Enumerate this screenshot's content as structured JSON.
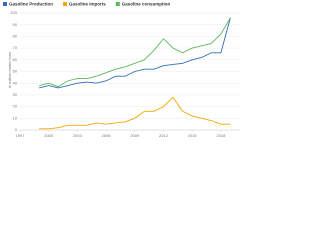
{
  "chart_data": {
    "type": "line",
    "y_label": "in million metric tons",
    "x": [
      1999,
      2000,
      2001,
      2002,
      2003,
      2004,
      2005,
      2006,
      2007,
      2008,
      2009,
      2010,
      2011,
      2012,
      2013,
      2014,
      2015,
      2016,
      2017,
      2018,
      2019
    ],
    "series": [
      {
        "name": "Gasoline Production",
        "color": "#2f6fb5",
        "values": [
          36,
          38,
          36,
          38,
          40,
          41,
          40,
          42,
          46,
          46,
          50,
          52,
          52,
          55,
          56,
          57,
          60,
          62,
          66,
          66,
          96
        ]
      },
      {
        "name": "Gasoline Imports",
        "color": "#f2a900",
        "values": [
          1,
          1,
          2,
          4,
          4,
          4,
          6,
          5,
          6,
          7,
          10,
          16,
          16,
          20,
          28,
          16,
          12,
          10,
          8,
          5,
          5
        ]
      },
      {
        "name": "Gasoline consumption",
        "color": "#5cb85c",
        "values": [
          38,
          40,
          37,
          42,
          44,
          44,
          46,
          49,
          52,
          54,
          57,
          60,
          68,
          78,
          70,
          66,
          70,
          72,
          74,
          82,
          96
        ]
      }
    ],
    "xlim": [
      1997,
      2020
    ],
    "xticks": [
      1997,
      2000,
      2003,
      2006,
      2009,
      2012,
      2015,
      2018
    ],
    "ylim": [
      0,
      100
    ],
    "yticks": [
      0,
      10,
      20,
      30,
      40,
      50,
      60,
      70,
      80,
      90,
      100
    ],
    "grid": true
  }
}
